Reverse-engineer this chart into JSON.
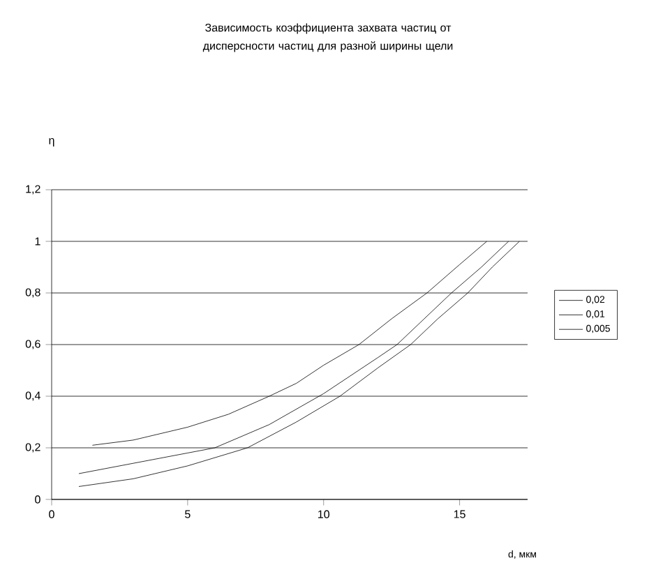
{
  "chart_data": {
    "type": "line",
    "title": "Зависимость коэффициента захвата частиц от дисперсности частиц для разной ширины щели",
    "xlabel": "d, мкм",
    "ylabel": "η",
    "xlim": [
      0,
      17.5
    ],
    "xticks": [
      0,
      5,
      10,
      15
    ],
    "ylim": [
      0,
      1.2
    ],
    "yticks": [
      0,
      {
        "value": 0.2,
        "label": "0,2"
      },
      {
        "value": 0.4,
        "label": "0,4"
      },
      {
        "value": 0.6,
        "label": "0,6"
      },
      {
        "value": 0.8,
        "label": "0,8"
      },
      1,
      {
        "value": 1.2,
        "label": "1,2"
      }
    ],
    "grid": "y",
    "legend": "right",
    "marker": "none",
    "line_style": "solid",
    "series": [
      {
        "name": "0,02",
        "color": "#000000",
        "x": [
          1.5,
          3,
          5,
          6.5,
          8,
          9,
          10,
          11.3,
          12.5,
          13.8,
          15,
          16
        ],
        "values": [
          0.21,
          0.23,
          0.28,
          0.33,
          0.4,
          0.45,
          0.52,
          0.6,
          0.7,
          0.8,
          0.91,
          1.0
        ]
      },
      {
        "name": "0,01",
        "color": "#000000",
        "x": [
          1,
          3,
          5,
          6,
          8,
          10,
          11,
          12,
          12.7,
          13.7,
          14.7,
          15.8,
          16.8
        ],
        "values": [
          0.1,
          0.14,
          0.18,
          0.2,
          0.29,
          0.41,
          0.48,
          0.55,
          0.6,
          0.7,
          0.8,
          0.9,
          1.0
        ]
      },
      {
        "name": "0,005",
        "color": "#000000",
        "x": [
          1,
          3,
          5,
          7.2,
          9,
          10.6,
          12,
          13.2,
          14.2,
          15.3,
          16.2,
          17.2
        ],
        "values": [
          0.05,
          0.08,
          0.13,
          0.2,
          0.3,
          0.4,
          0.51,
          0.6,
          0.7,
          0.8,
          0.9,
          1.0
        ]
      }
    ]
  }
}
